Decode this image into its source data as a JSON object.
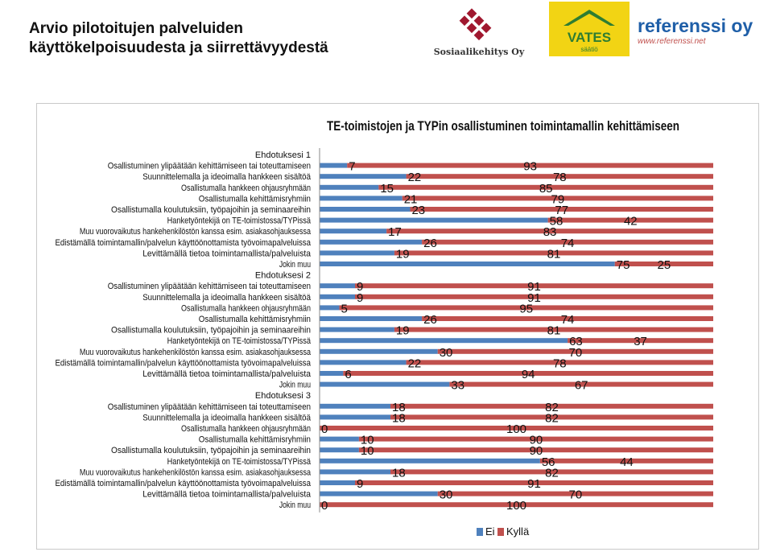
{
  "slide": {
    "title_line1": "Arvio pilotoitujen palveluiden",
    "title_line2": "käyttökelpoisuudesta ja siirrettävyydestä"
  },
  "logos": {
    "sosiaalikehitys": "Sosiaalikehitys Oy",
    "vates_name": "VATES",
    "vates_sub": "säätiö",
    "referenssi_name": "referenssi oy",
    "referenssi_url": "www.referenssi.net"
  },
  "colors": {
    "ei": "#4f81bd",
    "kylla": "#c0504d",
    "sos_red": "#a0182f",
    "vates_yellow": "#f2d414",
    "vates_green": "#2e7d32",
    "ref_blue": "#1f5fa8"
  },
  "chart_data": {
    "type": "bar",
    "orientation": "horizontal",
    "stacked": "100%",
    "title": "TE-toimistojen ja TYPin osallistuminen toimintamallin kehittämiseen",
    "groups": [
      {
        "label": "Ehdotuksesi 1",
        "categories": [
          "Osallistuminen ylipäätään kehittämiseen tai toteuttamiseen",
          "Suunnittelemalla ja ideoimalla hankkeen sisältöä",
          "Osallistumalla hankkeen ohjausryhmään",
          "Osallistumalla kehittämisryhmiin",
          "Osallistumalla koulutuksiin, työpajoihin ja seminaareihin",
          "Hanketyöntekijä on TE-toimistossa/TYPissä",
          "Muu vuorovaikutus hankehenkilöstön kanssa esim. asiakasohjauksessa",
          "Edistämällä toimintamallin/palvelun käyttöönottamista työvoimapalveluissa",
          "Levittämällä tietoa toimintamallista/palveluista",
          "Jokin muu"
        ],
        "ei": [
          7,
          22,
          15,
          21,
          23,
          58,
          17,
          26,
          19,
          75
        ],
        "kylla": [
          93,
          78,
          85,
          79,
          77,
          42,
          83,
          74,
          81,
          25
        ]
      },
      {
        "label": "Ehdotuksesi 2",
        "categories": [
          "Osallistuminen ylipäätään kehittämiseen tai toteuttamiseen",
          "Suunnittelemalla ja ideoimalla hankkeen sisältöä",
          "Osallistumalla hankkeen ohjausryhmään",
          "Osallistumalla kehittämisryhmiin",
          "Osallistumalla koulutuksiin, työpajoihin ja seminaareihin",
          "Hanketyöntekijä on TE-toimistossa/TYPissä",
          "Muu vuorovaikutus hankehenkilöstön kanssa esim. asiakasohjauksessa",
          "Edistämällä toimintamallin/palvelun käyttöönottamista työvoimapalveluissa",
          "Levittämällä tietoa toimintamallista/palveluista",
          "Jokin muu"
        ],
        "ei": [
          9,
          9,
          5,
          26,
          19,
          63,
          30,
          22,
          6,
          33
        ],
        "kylla": [
          91,
          91,
          95,
          74,
          81,
          37,
          70,
          78,
          94,
          67
        ]
      },
      {
        "label": "Ehdotuksesi 3",
        "categories": [
          "Osallistuminen ylipäätään kehittämiseen tai toteuttamiseen",
          "Suunnittelemalla ja ideoimalla hankkeen sisältöä",
          "Osallistumalla hankkeen ohjausryhmään",
          "Osallistumalla kehittämisryhmiin",
          "Osallistumalla koulutuksiin, työpajoihin ja seminaareihin",
          "Hanketyöntekijä on TE-toimistossa/TYPissä",
          "Muu vuorovaikutus hankehenkilöstön kanssa esim. asiakasohjauksessa",
          "Edistämällä toimintamallin/palvelun käyttöönottamista työvoimapalveluissa",
          "Levittämällä tietoa toimintamallista/palveluista",
          "Jokin muu"
        ],
        "ei": [
          18,
          18,
          0,
          10,
          10,
          56,
          18,
          9,
          30,
          0
        ],
        "kylla": [
          82,
          82,
          100,
          90,
          90,
          44,
          82,
          91,
          70,
          100
        ]
      }
    ],
    "series": [
      {
        "name": "Ei",
        "key": "ei"
      },
      {
        "name": "Kyllä",
        "key": "kylla"
      }
    ],
    "xlim": [
      0,
      100
    ],
    "legend_position": "bottom"
  }
}
